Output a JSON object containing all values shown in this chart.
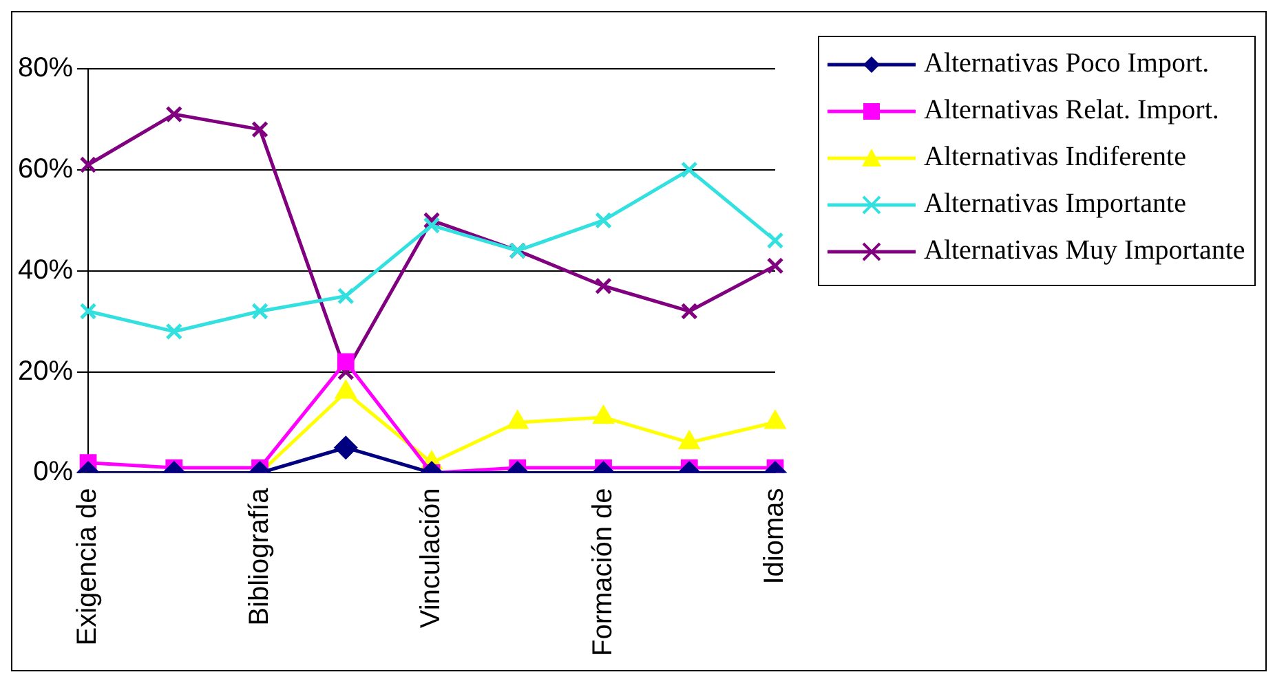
{
  "chart_data": {
    "type": "line",
    "categories": [
      "Exigencia de",
      null,
      "Bibliografía",
      null,
      "Vinculación",
      null,
      "Formación de",
      null,
      "Idiomas"
    ],
    "series": [
      {
        "name": "Alternativas Poco Import.",
        "color": "#000080",
        "marker": "diamond",
        "values": [
          0,
          0,
          0,
          5,
          0,
          0,
          0,
          0,
          0
        ]
      },
      {
        "name": "Alternativas Relat. Import.",
        "color": "#ff00ff",
        "marker": "square",
        "values": [
          2,
          1,
          1,
          22,
          0,
          1,
          1,
          1,
          1
        ]
      },
      {
        "name": "Alternativas Indiferente",
        "color": "#ffff00",
        "marker": "triangle",
        "values": [
          0,
          0,
          0,
          16,
          2,
          10,
          11,
          6,
          10
        ]
      },
      {
        "name": "Alternativas Importante",
        "color": "#33e0e0",
        "marker": "cross",
        "values": [
          32,
          28,
          32,
          35,
          49,
          44,
          50,
          60,
          46
        ]
      },
      {
        "name": "Alternativas Muy Importante",
        "color": "#800080",
        "marker": "cross",
        "values": [
          61,
          71,
          68,
          20,
          50,
          44,
          37,
          32,
          41
        ]
      }
    ],
    "ylim": [
      0,
      80
    ],
    "yticks": [
      {
        "value": 0,
        "label": "0%"
      },
      {
        "value": 20,
        "label": "20%"
      },
      {
        "value": 40,
        "label": "40%"
      },
      {
        "value": 60,
        "label": "60%"
      },
      {
        "value": 80,
        "label": "80%"
      }
    ],
    "grid": "y",
    "legend": "right"
  }
}
